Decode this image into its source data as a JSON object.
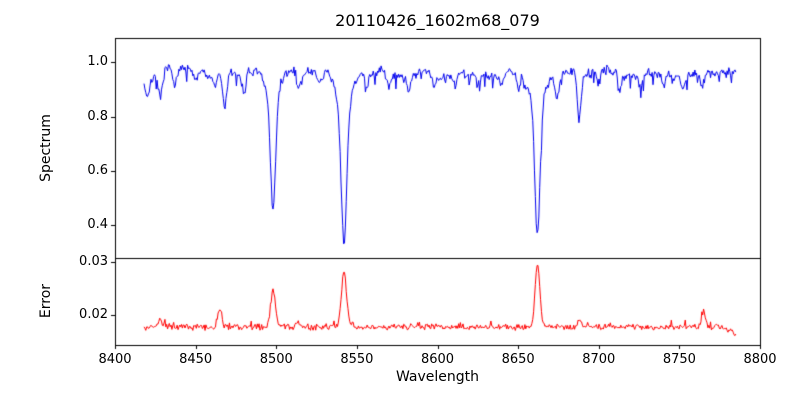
{
  "chart_data": {
    "type": "line",
    "title": "20110426_1602m68_079",
    "xlabel": "Wavelength",
    "xlim": [
      8400,
      8800
    ],
    "x_ticks": [
      8400,
      8450,
      8500,
      8550,
      8600,
      8650,
      8700,
      8750,
      8800
    ],
    "x_data_range": [
      8418,
      8785
    ],
    "legend": "none",
    "grid": false,
    "panels": [
      {
        "id": "spectrum",
        "ylabel": "Spectrum",
        "ylim": [
          0.28,
          1.09
        ],
        "y_ticks": [
          0.4,
          0.6,
          0.8,
          1.0
        ],
        "y_tick_labels": [
          "0.4",
          "0.6",
          "0.8",
          "1.0"
        ],
        "line_color": "#0000ee",
        "continuum": 0.96,
        "noise_amplitude": 0.02,
        "absorption_lines": [
          [
            8420,
            0.08,
            1.5
          ],
          [
            8428,
            0.1,
            1.2
          ],
          [
            8437,
            0.05,
            1.0
          ],
          [
            8450,
            0.05,
            1.0
          ],
          [
            8462,
            0.05,
            1.0
          ],
          [
            8468,
            0.11,
            1.2
          ],
          [
            8480,
            0.06,
            1.0
          ],
          [
            8498,
            0.4,
            1.5
          ],
          [
            8498,
            0.1,
            4.0
          ],
          [
            8514,
            0.07,
            1.1
          ],
          [
            8527,
            0.05,
            1.0
          ],
          [
            8542,
            0.5,
            1.7
          ],
          [
            8542,
            0.12,
            5.0
          ],
          [
            8556,
            0.04,
            1.0
          ],
          [
            8570,
            0.05,
            1.0
          ],
          [
            8582,
            0.05,
            1.0
          ],
          [
            8598,
            0.06,
            1.1
          ],
          [
            8611,
            0.04,
            1.0
          ],
          [
            8625,
            0.05,
            1.0
          ],
          [
            8640,
            0.04,
            1.0
          ],
          [
            8650,
            0.06,
            1.0
          ],
          [
            8662,
            0.48,
            1.6
          ],
          [
            8662,
            0.11,
            4.5
          ],
          [
            8674,
            0.08,
            1.2
          ],
          [
            8688,
            0.18,
            1.3
          ],
          [
            8700,
            0.04,
            1.0
          ],
          [
            8713,
            0.06,
            1.1
          ],
          [
            8726,
            0.05,
            1.0
          ],
          [
            8740,
            0.04,
            1.0
          ],
          [
            8752,
            0.05,
            1.0
          ],
          [
            8764,
            0.04,
            1.0
          ]
        ]
      },
      {
        "id": "error",
        "ylabel": "Error",
        "ylim": [
          0.0143,
          0.0308
        ],
        "y_ticks": [
          0.02,
          0.03
        ],
        "y_tick_labels": [
          "0.02",
          "0.03"
        ],
        "line_color": "#ff0000",
        "baseline": 0.0177,
        "noise_amplitude": 0.0007,
        "peaks": [
          [
            8428,
            0.0015,
            1.2
          ],
          [
            8465,
            0.0033,
            1.2
          ],
          [
            8498,
            0.0068,
            1.5
          ],
          [
            8513,
            0.0012,
            1.0
          ],
          [
            8542,
            0.0102,
            1.6
          ],
          [
            8662,
            0.0118,
            1.5
          ],
          [
            8688,
            0.0013,
            1.2
          ],
          [
            8765,
            0.0027,
            1.3
          ]
        ],
        "edge_dip": [
          8778,
          0.0013
        ]
      }
    ]
  }
}
